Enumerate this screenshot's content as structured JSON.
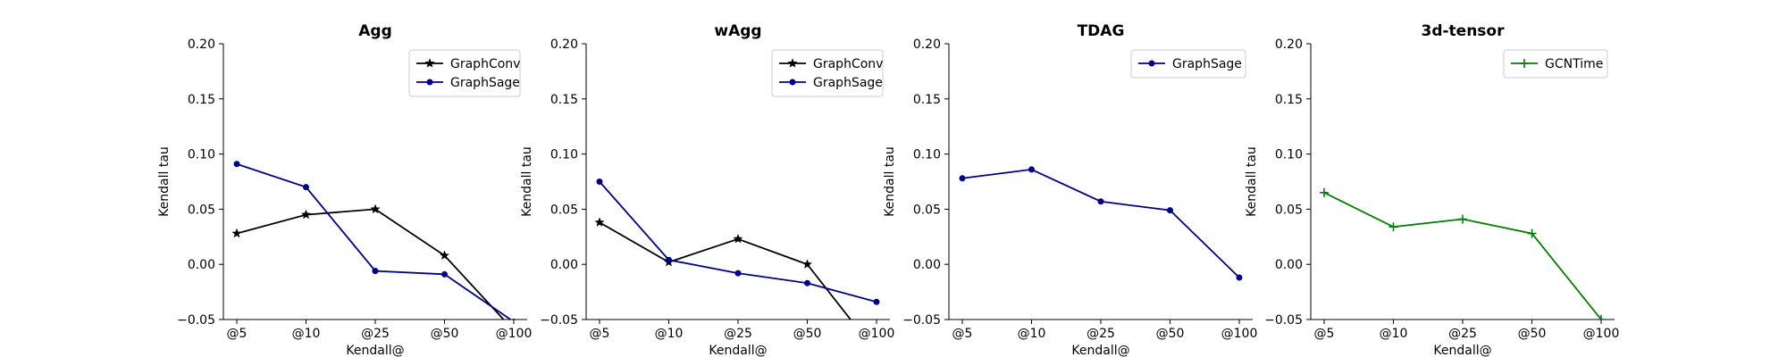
{
  "chart_data": [
    {
      "type": "line",
      "title": "Agg",
      "xlabel": "Kendall@",
      "ylabel": "Kendall tau",
      "categories": [
        "@5",
        "@10",
        "@25",
        "@50",
        "@100"
      ],
      "ylim": [
        -0.05,
        0.2
      ],
      "yticks": [
        "0.20",
        "0.15",
        "0.10",
        "0.05",
        "0.00",
        "−0.05"
      ],
      "legend_position": "top-right",
      "grid": false,
      "series": [
        {
          "name": "GraphConv",
          "values": [
            0.028,
            0.045,
            0.05,
            0.008,
            -0.06
          ],
          "color": "#000000",
          "marker": "star"
        },
        {
          "name": "GraphSage",
          "values": [
            0.091,
            0.07,
            -0.006,
            -0.009,
            -0.052
          ],
          "color": "#00008b",
          "marker": "dot"
        }
      ]
    },
    {
      "type": "line",
      "title": "wAgg",
      "xlabel": "Kendall@",
      "ylabel": "Kendall tau",
      "categories": [
        "@5",
        "@10",
        "@25",
        "@50",
        "@100"
      ],
      "ylim": [
        -0.05,
        0.2
      ],
      "yticks": [
        "0.20",
        "0.15",
        "0.10",
        "0.05",
        "0.00",
        "−0.05"
      ],
      "legend_position": "top-right",
      "grid": false,
      "series": [
        {
          "name": "GraphConv",
          "values": [
            0.038,
            0.002,
            0.023,
            0.0,
            -0.08
          ],
          "color": "#000000",
          "marker": "star"
        },
        {
          "name": "GraphSage",
          "values": [
            0.075,
            0.004,
            -0.008,
            -0.017,
            -0.034
          ],
          "color": "#00008b",
          "marker": "dot"
        }
      ]
    },
    {
      "type": "line",
      "title": "TDAG",
      "xlabel": "Kendall@",
      "ylabel": "Kendall tau",
      "categories": [
        "@5",
        "@10",
        "@25",
        "@50",
        "@100"
      ],
      "ylim": [
        -0.05,
        0.2
      ],
      "yticks": [
        "0.20",
        "0.15",
        "0.10",
        "0.05",
        "0.00",
        "−0.05"
      ],
      "legend_position": "top-right",
      "grid": false,
      "series": [
        {
          "name": "GraphSage",
          "values": [
            0.078,
            0.086,
            0.057,
            0.049,
            -0.012
          ],
          "color": "#00008b",
          "marker": "dot"
        }
      ]
    },
    {
      "type": "line",
      "title": "3d-tensor",
      "xlabel": "Kendall@",
      "ylabel": "Kendall tau",
      "categories": [
        "@5",
        "@10",
        "@25",
        "@50",
        "@100"
      ],
      "ylim": [
        -0.05,
        0.2
      ],
      "yticks": [
        "0.20",
        "0.15",
        "0.10",
        "0.05",
        "0.00",
        "−0.05"
      ],
      "legend_position": "top-right",
      "grid": false,
      "series": [
        {
          "name": "GCNTime",
          "values": [
            0.065,
            0.034,
            0.041,
            0.028,
            -0.05
          ],
          "color": "#008000",
          "marker": "plus"
        }
      ]
    }
  ]
}
